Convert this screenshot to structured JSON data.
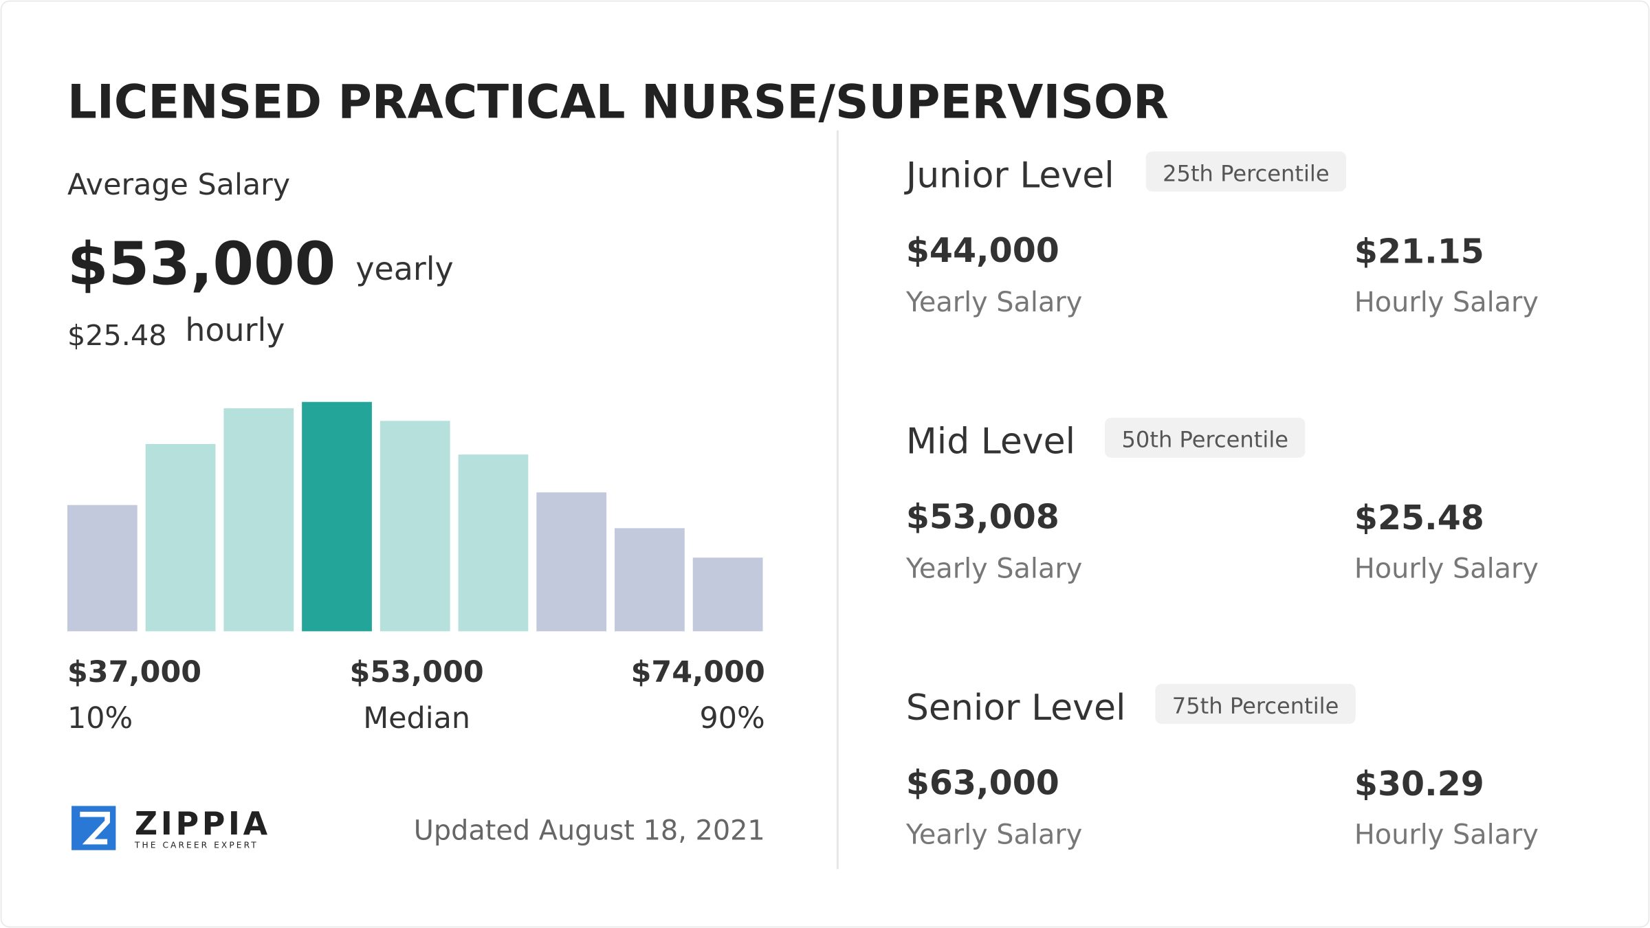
{
  "header": {
    "title": "LICENSED PRACTICAL NURSE/SUPERVISOR"
  },
  "average": {
    "label": "Average Salary",
    "yearly_value": "$53,000",
    "yearly_unit": "yearly",
    "hourly_value": "$25.48",
    "hourly_unit": "hourly"
  },
  "chart_data": {
    "type": "bar",
    "values": [
      120,
      178,
      212,
      218,
      200,
      168,
      132,
      98,
      70
    ],
    "colors": [
      "#c3c9dc",
      "#b5e0dc",
      "#b5e0dc",
      "#23a699",
      "#b5e0dc",
      "#b5e0dc",
      "#c3c9dc",
      "#c3c9dc",
      "#c3c9dc"
    ]
  },
  "range_labels": [
    {
      "value": "$37,000",
      "label": "10%"
    },
    {
      "value": "$53,000",
      "label": "Median"
    },
    {
      "value": "$74,000",
      "label": "90%"
    }
  ],
  "logo": {
    "name": "ZIPPIA",
    "tagline": "THE CAREER EXPERT"
  },
  "updated": "Updated August 18, 2021",
  "levels": [
    {
      "name": "Junior Level",
      "percentile": "25th Percentile",
      "yearly": "$44,000",
      "yearly_label": "Yearly Salary",
      "hourly": "$21.15",
      "hourly_label": "Hourly Salary"
    },
    {
      "name": "Mid Level",
      "percentile": "50th Percentile",
      "yearly": "$53,008",
      "yearly_label": "Yearly Salary",
      "hourly": "$25.48",
      "hourly_label": "Hourly Salary"
    },
    {
      "name": "Senior Level",
      "percentile": "75th Percentile",
      "yearly": "$63,000",
      "yearly_label": "Yearly Salary",
      "hourly": "$30.29",
      "hourly_label": "Hourly Salary"
    }
  ]
}
